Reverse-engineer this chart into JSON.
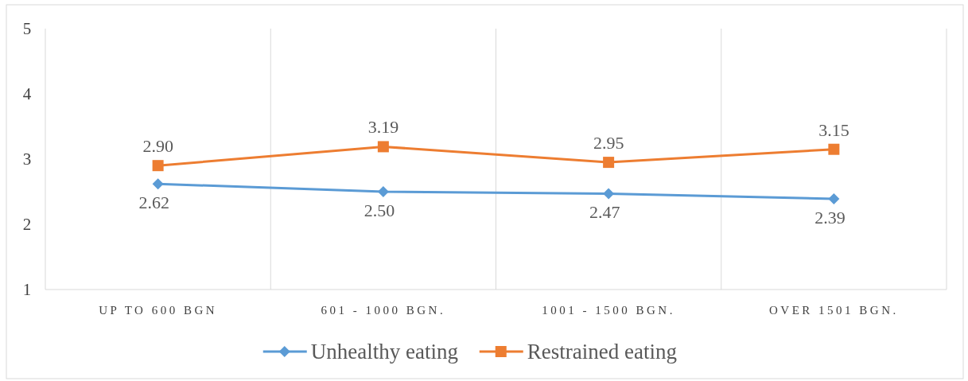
{
  "chart_data": {
    "type": "line",
    "categories": [
      "UP TO 600 BGN",
      "601 - 1000 BGN.",
      "1001 - 1500 BGN.",
      "OVER 1501 BGN."
    ],
    "series": [
      {
        "name": "Unhealthy eating",
        "color": "#5b9bd5",
        "values": [
          2.62,
          2.5,
          2.47,
          2.39
        ],
        "value_labels": [
          "2.62",
          "2.50",
          "2.47",
          "2.39"
        ],
        "marker": "diamond"
      },
      {
        "name": "Restrained eating",
        "color": "#ed7d31",
        "values": [
          2.9,
          3.19,
          2.95,
          3.15
        ],
        "value_labels": [
          "2.90",
          "3.19",
          "2.95",
          "3.15"
        ],
        "marker": "square"
      }
    ],
    "ylim": [
      1,
      5
    ],
    "yticks": [
      1,
      2,
      3,
      4,
      5
    ],
    "grid": "x",
    "legend": "bottom"
  }
}
